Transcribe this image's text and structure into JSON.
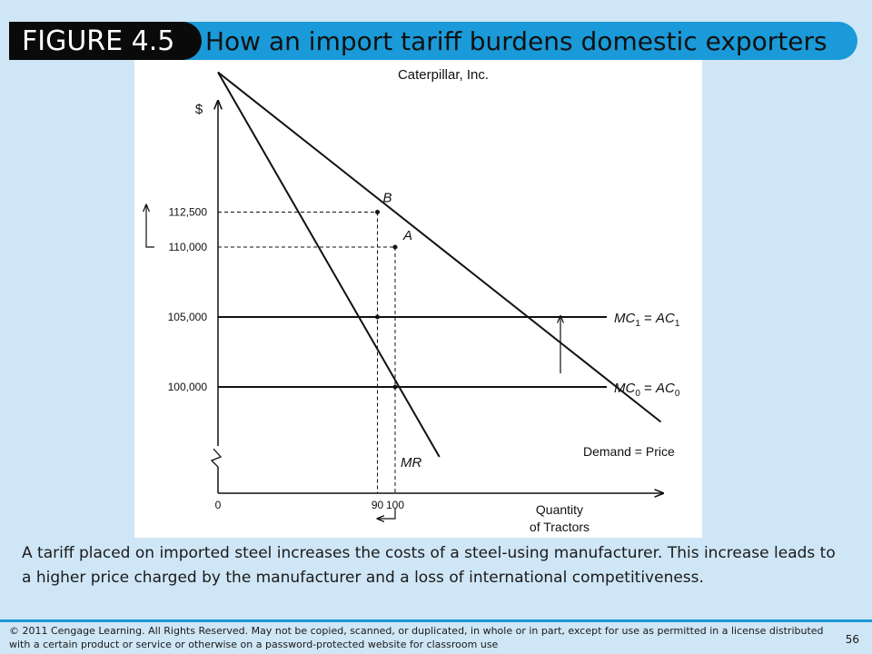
{
  "slide": {
    "figure_label": "FIGURE 4.5",
    "title": "How an import tariff burdens domestic exporters",
    "caption": "A tariff placed on imported steel increases the costs of a steel-using manufacturer. This increase leads to a higher price charged by the manufacturer and a loss of international competitiveness.",
    "copyright": "© 2011  Cengage Learning. All Rights Reserved. May not be copied, scanned, or duplicated, in whole or in part, except for use as permitted in a license distributed with a certain product or service or otherwise on a password-protected website for classroom use",
    "page_number": "56"
  },
  "colors": {
    "header_band": "#1a9ad8",
    "figure_pill": "#0a0a0a",
    "background": "#cfe6f6"
  },
  "chart_data": {
    "type": "line",
    "title": "Caterpillar, Inc.",
    "ylabel": "$",
    "xlabel": "Quantity of Tractors",
    "xlabel_lines": [
      "Quantity",
      "of Tractors"
    ],
    "origin_label": "0",
    "x_ticks": [
      {
        "value": 90,
        "label": "90"
      },
      {
        "value": 100,
        "label": "100"
      }
    ],
    "y_ticks": [
      {
        "value": 100000,
        "label": "100,000"
      },
      {
        "value": 105000,
        "label": "105,000"
      },
      {
        "value": 110000,
        "label": "110,000"
      },
      {
        "value": 112500,
        "label": "112,500"
      }
    ],
    "series": [
      {
        "name": "Demand = Price",
        "points": [
          [
            0,
            122500
          ],
          [
            250,
            97500
          ]
        ]
      },
      {
        "name": "MR",
        "points": [
          [
            0,
            122500
          ],
          [
            125,
            95000
          ]
        ]
      },
      {
        "name": "MC1 = AC1",
        "label_main": "MC",
        "label_sub": "1",
        "label_rhs": "AC",
        "label_rhs_sub": "1",
        "points": [
          [
            0,
            105000
          ],
          [
            280,
            105000
          ]
        ]
      },
      {
        "name": "MC0 = AC0",
        "label_main": "MC",
        "label_sub": "0",
        "label_rhs": "AC",
        "label_rhs_sub": "0",
        "points": [
          [
            0,
            100000
          ],
          [
            280,
            100000
          ]
        ]
      }
    ],
    "points": [
      {
        "label": "B",
        "x": 90,
        "y": 112500
      },
      {
        "label": "A",
        "x": 100,
        "y": 110000
      }
    ],
    "annotations": [
      "price rises from 110,000 to 112,500",
      "cost rises from MC0 to MC1",
      "quantity falls from 100 to 90"
    ],
    "y_axis_break": true
  }
}
